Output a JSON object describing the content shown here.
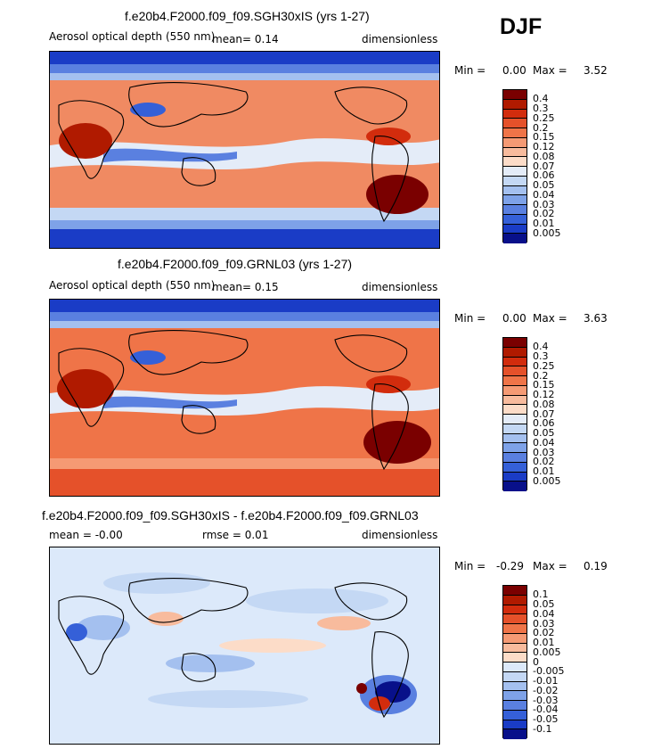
{
  "season": "DJF",
  "panels": [
    {
      "title": "f.e20b4.F2000.f09_f09.SGH30xIS (yrs 1-27)",
      "left_label": "Aerosol optical depth (550 nm)",
      "mean_text": "mean=   0.14",
      "units": "dimensionless",
      "min_label": "Min =",
      "min_value": "0.00",
      "max_label": "Max =",
      "max_value": "3.52",
      "colorbar": {
        "colors": [
          "#7a0000",
          "#b01a00",
          "#d22c0d",
          "#e5512a",
          "#ef7448",
          "#f59a74",
          "#f8bb9d",
          "#fcdcc8",
          "#e4ecf8",
          "#c4d8f4",
          "#a4c0ef",
          "#7ea2e8",
          "#5a80e0",
          "#3560d8",
          "#1a3cc6",
          "#08108a"
        ],
        "labels": [
          "0.4",
          "0.3",
          "0.25",
          "0.2",
          "0.15",
          "0.12",
          "0.08",
          "0.07",
          "0.06",
          "0.05",
          "0.04",
          "0.03",
          "0.02",
          "0.01",
          "0.005"
        ]
      }
    },
    {
      "title": "f.e20b4.F2000.f09_f09.GRNL03 (yrs 1-27)",
      "left_label": "Aerosol optical depth (550 nm)",
      "mean_text": "mean=   0.15",
      "units": "dimensionless",
      "min_label": "Min =",
      "min_value": "0.00",
      "max_label": "Max =",
      "max_value": "3.63",
      "colorbar": {
        "colors": [
          "#7a0000",
          "#b01a00",
          "#d22c0d",
          "#e5512a",
          "#ef7448",
          "#f59a74",
          "#f8bb9d",
          "#fcdcc8",
          "#e4ecf8",
          "#c4d8f4",
          "#a4c0ef",
          "#7ea2e8",
          "#5a80e0",
          "#3560d8",
          "#1a3cc6",
          "#08108a"
        ],
        "labels": [
          "0.4",
          "0.3",
          "0.25",
          "0.2",
          "0.15",
          "0.12",
          "0.08",
          "0.07",
          "0.06",
          "0.05",
          "0.04",
          "0.03",
          "0.02",
          "0.01",
          "0.005"
        ]
      }
    },
    {
      "title": "f.e20b4.F2000.f09_f09.SGH30xIS - f.e20b4.F2000.f09_f09.GRNL03",
      "left_label": "mean =   -0.00",
      "mean_text": "rmse =   0.01",
      "units": "dimensionless",
      "min_label": "Min =",
      "min_value": "-0.29",
      "max_label": "Max =",
      "max_value": "0.19",
      "colorbar": {
        "colors": [
          "#7a0000",
          "#b01a00",
          "#d22c0d",
          "#e5512a",
          "#ef7448",
          "#f59a74",
          "#f8bb9d",
          "#fcdcc8",
          "#dce9fa",
          "#c4d8f4",
          "#a4c0ef",
          "#7ea2e8",
          "#5a80e0",
          "#3560d8",
          "#1a3cc6",
          "#08108a"
        ],
        "labels": [
          "0.1",
          "0.05",
          "0.04",
          "0.03",
          "0.02",
          "0.01",
          "0.005",
          "0",
          "-0.005",
          "-0.01",
          "-0.02",
          "-0.03",
          "-0.04",
          "-0.05",
          "-0.1"
        ]
      }
    }
  ]
}
